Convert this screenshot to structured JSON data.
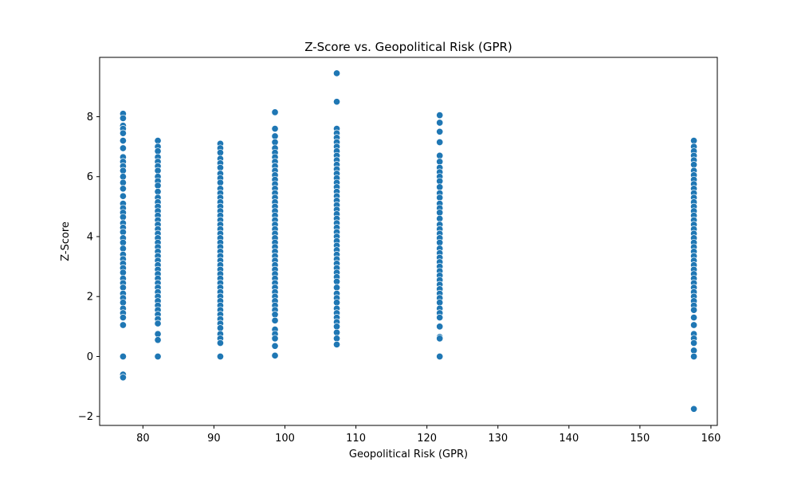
{
  "chart_data": {
    "type": "scatter",
    "title": "Z-Score vs. Geopolitical Risk (GPR)",
    "xlabel": "Geopolitical Risk (GPR)",
    "ylabel": "Z-Score",
    "xlim": [
      73.9,
      160.9
    ],
    "ylim": [
      -2.3,
      9.98
    ],
    "xticks": [
      80,
      90,
      100,
      110,
      120,
      130,
      140,
      150,
      160
    ],
    "yticks": [
      -2,
      0,
      2,
      4,
      6,
      8
    ],
    "ytick_labels": [
      "−2",
      "0",
      "2",
      "4",
      "6",
      "8"
    ],
    "grid": false,
    "marker_color": "#1f77b4",
    "series": [
      {
        "x": 77.2,
        "y": [
          8.1,
          7.95,
          7.7,
          7.6,
          7.45,
          7.2,
          6.95,
          6.65,
          6.5,
          6.35,
          6.2,
          6.0,
          5.8,
          5.6,
          5.35,
          5.1,
          4.95,
          4.8,
          4.65,
          4.45,
          4.3,
          4.15,
          3.95,
          3.8,
          3.6,
          3.4,
          3.25,
          3.1,
          2.95,
          2.8,
          2.6,
          2.45,
          2.3,
          2.1,
          1.95,
          1.8,
          1.6,
          1.45,
          1.3,
          1.05,
          0.0,
          -0.6,
          -0.7
        ]
      },
      {
        "x": 82.1,
        "y": [
          7.2,
          7.0,
          6.85,
          6.65,
          6.5,
          6.35,
          6.2,
          6.0,
          5.85,
          5.7,
          5.5,
          5.3,
          5.15,
          5.0,
          4.85,
          4.7,
          4.55,
          4.4,
          4.25,
          4.1,
          3.95,
          3.8,
          3.65,
          3.5,
          3.35,
          3.2,
          3.05,
          2.9,
          2.75,
          2.6,
          2.45,
          2.3,
          2.15,
          2.0,
          1.85,
          1.7,
          1.55,
          1.4,
          1.25,
          1.1,
          0.75,
          0.55,
          0.0
        ]
      },
      {
        "x": 90.9,
        "y": [
          7.1,
          6.95,
          6.8,
          6.6,
          6.45,
          6.3,
          6.1,
          5.95,
          5.8,
          5.6,
          5.45,
          5.3,
          5.15,
          5.0,
          4.85,
          4.7,
          4.55,
          4.4,
          4.25,
          4.1,
          3.95,
          3.8,
          3.65,
          3.5,
          3.35,
          3.2,
          3.05,
          2.9,
          2.75,
          2.6,
          2.45,
          2.3,
          2.15,
          2.0,
          1.85,
          1.7,
          1.55,
          1.4,
          1.25,
          1.1,
          0.95,
          0.75,
          0.6,
          0.45,
          0.0
        ]
      },
      {
        "x": 98.6,
        "y": [
          8.15,
          7.6,
          7.35,
          7.15,
          6.95,
          6.8,
          6.65,
          6.5,
          6.35,
          6.2,
          6.05,
          5.9,
          5.75,
          5.6,
          5.45,
          5.3,
          5.15,
          5.0,
          4.85,
          4.7,
          4.55,
          4.4,
          4.25,
          4.1,
          3.95,
          3.8,
          3.65,
          3.5,
          3.35,
          3.2,
          3.05,
          2.9,
          2.75,
          2.6,
          2.45,
          2.3,
          2.15,
          2.0,
          1.85,
          1.7,
          1.55,
          1.4,
          1.2,
          0.9,
          0.75,
          0.6,
          0.35,
          0.03
        ]
      },
      {
        "x": 107.3,
        "y": [
          9.45,
          8.5,
          7.6,
          7.45,
          7.3,
          7.15,
          7.0,
          6.85,
          6.7,
          6.55,
          6.4,
          6.25,
          6.1,
          5.95,
          5.8,
          5.65,
          5.5,
          5.35,
          5.2,
          5.05,
          4.9,
          4.75,
          4.6,
          4.45,
          4.3,
          4.15,
          4.0,
          3.85,
          3.7,
          3.55,
          3.4,
          3.25,
          3.1,
          2.95,
          2.8,
          2.65,
          2.5,
          2.3,
          2.1,
          1.95,
          1.8,
          1.6,
          1.45,
          1.3,
          1.15,
          1.0,
          0.8,
          0.6,
          0.4
        ]
      },
      {
        "x": 121.8,
        "y": [
          8.05,
          7.8,
          7.5,
          7.15,
          6.7,
          6.5,
          6.3,
          6.15,
          6.0,
          5.85,
          5.65,
          5.45,
          5.3,
          5.1,
          4.95,
          4.8,
          4.6,
          4.4,
          4.25,
          4.1,
          3.95,
          3.8,
          3.6,
          3.45,
          3.3,
          3.15,
          3.0,
          2.85,
          2.7,
          2.55,
          2.4,
          2.25,
          2.1,
          1.95,
          1.8,
          1.6,
          1.45,
          1.3,
          1.0,
          0.65,
          0.6,
          0.0
        ]
      },
      {
        "x": 157.6,
        "y": [
          7.2,
          7.0,
          6.85,
          6.7,
          6.55,
          6.4,
          6.2,
          6.05,
          5.9,
          5.75,
          5.6,
          5.45,
          5.3,
          5.15,
          5.0,
          4.85,
          4.7,
          4.55,
          4.4,
          4.25,
          4.1,
          3.95,
          3.8,
          3.65,
          3.5,
          3.35,
          3.2,
          3.05,
          2.9,
          2.75,
          2.6,
          2.45,
          2.3,
          2.15,
          2.0,
          1.85,
          1.7,
          1.55,
          1.3,
          1.05,
          0.75,
          0.6,
          0.45,
          0.2,
          0.0,
          -1.75
        ]
      }
    ]
  }
}
